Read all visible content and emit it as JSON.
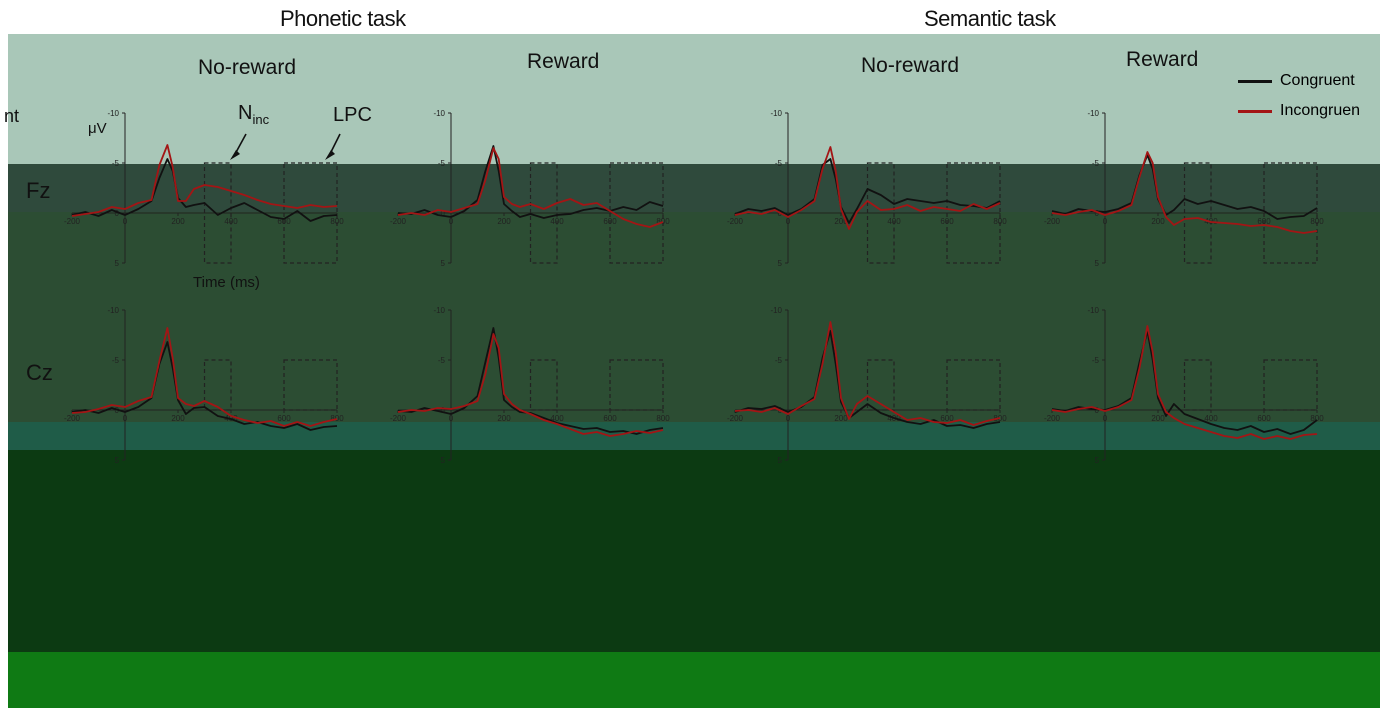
{
  "colors": {
    "band_top": "#a9c7b8",
    "band_fz": "#2f4a3c",
    "band_mid": "#2c4d33",
    "band_cz": "#24472f",
    "band_strip": "#1f5c48",
    "band_dark": "#0c3a12",
    "band_bottom": "#0f7a14",
    "congruent": "#111111",
    "incongruent": "#a31515",
    "roi_box": "#222222"
  },
  "header": {
    "tasks": [
      "Phonetic task",
      "Semantic task"
    ],
    "conditions": [
      "No-reward",
      "Reward",
      "No-reward",
      "Reward"
    ],
    "row_labels": [
      "Fz",
      "Cz"
    ],
    "cut_left_label": "nt"
  },
  "legend": [
    {
      "name": "Congruent",
      "color": "#111111"
    },
    {
      "name": "Incongruen",
      "color": "#a31515"
    }
  ],
  "annotations": {
    "y_unit": "μV",
    "n_inc_base": "N",
    "n_inc_sub": "inc",
    "lpc": "LPC",
    "x_axis_label": "Time (ms)"
  },
  "chart_data": {
    "type": "line",
    "x_unit": "ms",
    "y_unit": "μV",
    "xlim": [
      -200,
      800
    ],
    "ylim": [
      -10,
      5
    ],
    "y_inverted": true,
    "y_ticks": [
      -10,
      -5,
      0,
      5
    ],
    "y_tick_labels": [
      "-10",
      "-5",
      "0",
      "5"
    ],
    "x_ticks": [
      -200,
      0,
      200,
      400,
      600,
      800
    ],
    "x_tick_labels": [
      "-200",
      "0",
      "200",
      "400",
      "600",
      "800"
    ],
    "roi_windows": [
      {
        "name": "N_inc",
        "x_range": [
          300,
          400
        ],
        "y_range": [
          -5,
          5
        ]
      },
      {
        "name": "LPC",
        "x_range": [
          600,
          800
        ],
        "y_range": [
          -5,
          5
        ]
      }
    ],
    "panels": [
      {
        "task": "Phonetic task",
        "condition": "No-reward",
        "electrode": "Fz",
        "series": [
          {
            "name": "Congruent",
            "x": [
              -200,
              -150,
              -100,
              -50,
              0,
              50,
              100,
              130,
              160,
              180,
              200,
              230,
              260,
              300,
              350,
              400,
              450,
              500,
              550,
              600,
              650,
              700,
              750,
              800
            ],
            "y": [
              0.2,
              -0.1,
              0.3,
              -0.3,
              0.2,
              -0.4,
              -1.2,
              -3.5,
              -5.4,
              -4.2,
              -1.5,
              -0.6,
              -0.8,
              -1.0,
              0.2,
              -0.5,
              -1.0,
              -0.3,
              0.4,
              0.6,
              -0.2,
              0.8,
              0.3,
              0.2
            ]
          },
          {
            "name": "Incongruent",
            "x": [
              -200,
              -150,
              -100,
              -50,
              0,
              50,
              100,
              130,
              160,
              180,
              200,
              230,
              260,
              300,
              350,
              400,
              450,
              500,
              550,
              600,
              650,
              700,
              750,
              800
            ],
            "y": [
              0.3,
              0.1,
              -0.1,
              -0.6,
              -0.4,
              -1.0,
              -1.3,
              -4.8,
              -6.8,
              -4.6,
              -1.2,
              -1.2,
              -2.4,
              -2.8,
              -2.6,
              -2.2,
              -1.8,
              -1.3,
              -0.9,
              -0.7,
              -0.5,
              -0.8,
              -0.6,
              -0.7
            ]
          }
        ]
      },
      {
        "task": "Phonetic task",
        "condition": "Reward",
        "electrode": "Fz",
        "series": [
          {
            "name": "Congruent",
            "x": [
              -200,
              -150,
              -100,
              -50,
              0,
              50,
              100,
              130,
              160,
              180,
              200,
              230,
              260,
              300,
              350,
              400,
              450,
              500,
              550,
              600,
              650,
              700,
              750,
              800
            ],
            "y": [
              0.0,
              0.1,
              -0.3,
              0.2,
              0.4,
              -0.2,
              -1.3,
              -4.2,
              -6.7,
              -4.2,
              -0.9,
              -0.2,
              0.4,
              0.1,
              0.5,
              0.2,
              0.1,
              -0.3,
              -0.5,
              -0.2,
              -0.6,
              -0.3,
              -1.1,
              -0.7
            ]
          },
          {
            "name": "Incongruent",
            "x": [
              -200,
              -150,
              -100,
              -50,
              0,
              50,
              100,
              130,
              160,
              180,
              200,
              230,
              260,
              300,
              350,
              400,
              450,
              500,
              550,
              600,
              650,
              700,
              750,
              800
            ],
            "y": [
              0.2,
              0.0,
              0.2,
              -0.3,
              -0.1,
              -0.5,
              -0.9,
              -3.3,
              -6.5,
              -5.4,
              -1.6,
              -0.9,
              -0.6,
              -0.9,
              -0.4,
              -1.0,
              -1.4,
              -0.8,
              -1.0,
              -0.2,
              0.6,
              1.1,
              1.4,
              0.9
            ]
          }
        ]
      },
      {
        "task": "Semantic task",
        "condition": "No-reward",
        "electrode": "Fz",
        "series": [
          {
            "name": "Congruent",
            "x": [
              -200,
              -150,
              -100,
              -50,
              0,
              50,
              100,
              130,
              160,
              180,
              200,
              230,
              260,
              300,
              350,
              400,
              450,
              500,
              550,
              600,
              650,
              700,
              750,
              800
            ],
            "y": [
              0.1,
              -0.4,
              -0.2,
              -0.5,
              0.2,
              -0.4,
              -1.4,
              -4.8,
              -5.4,
              -3.4,
              -0.6,
              1.0,
              -0.4,
              -2.4,
              -1.8,
              -0.9,
              -1.4,
              -1.2,
              -1.0,
              -1.2,
              -0.8,
              -0.7,
              -0.5,
              -1.2
            ]
          },
          {
            "name": "Incongruent",
            "x": [
              -200,
              -150,
              -100,
              -50,
              0,
              50,
              100,
              130,
              160,
              180,
              200,
              230,
              260,
              300,
              350,
              400,
              450,
              500,
              550,
              600,
              650,
              700,
              750,
              800
            ],
            "y": [
              0.2,
              -0.1,
              0.1,
              -0.3,
              0.4,
              -0.3,
              -1.2,
              -4.4,
              -6.6,
              -4.2,
              -0.4,
              1.6,
              -0.1,
              -1.2,
              -0.3,
              -0.4,
              -0.8,
              -0.2,
              -0.6,
              -0.4,
              -0.2,
              -0.9,
              -0.4,
              -1.0
            ]
          }
        ]
      },
      {
        "task": "Semantic task",
        "condition": "Reward",
        "electrode": "Fz",
        "series": [
          {
            "name": "Congruent",
            "x": [
              -200,
              -150,
              -100,
              -50,
              0,
              50,
              100,
              130,
              160,
              180,
              200,
              230,
              260,
              300,
              350,
              400,
              450,
              500,
              550,
              600,
              650,
              700,
              750,
              800
            ],
            "y": [
              -0.2,
              0.1,
              -0.4,
              -0.2,
              -0.1,
              -0.4,
              -1.0,
              -3.8,
              -5.8,
              -4.4,
              -1.4,
              0.2,
              -0.3,
              -1.4,
              -0.9,
              -1.2,
              -0.8,
              -0.4,
              -0.6,
              -0.2,
              0.6,
              0.4,
              0.3,
              -0.5
            ]
          },
          {
            "name": "Incongruent",
            "x": [
              -200,
              -150,
              -100,
              -50,
              0,
              50,
              100,
              130,
              160,
              180,
              200,
              230,
              260,
              300,
              350,
              400,
              450,
              500,
              550,
              600,
              650,
              700,
              750,
              800
            ],
            "y": [
              0.0,
              0.2,
              -0.1,
              -0.3,
              0.2,
              -0.2,
              -0.8,
              -3.6,
              -6.1,
              -5.0,
              -1.6,
              0.4,
              1.2,
              0.6,
              0.5,
              0.9,
              1.0,
              1.1,
              1.3,
              1.2,
              1.4,
              1.8,
              2.0,
              1.8
            ]
          }
        ]
      },
      {
        "task": "Phonetic task",
        "condition": "No-reward",
        "electrode": "Cz",
        "series": [
          {
            "name": "Congruent",
            "x": [
              -200,
              -150,
              -100,
              -50,
              0,
              50,
              100,
              130,
              160,
              180,
              200,
              230,
              260,
              300,
              350,
              400,
              450,
              500,
              550,
              600,
              650,
              700,
              750,
              800
            ],
            "y": [
              0.2,
              0.0,
              0.3,
              -0.2,
              0.2,
              -0.3,
              -1.2,
              -4.6,
              -6.8,
              -4.2,
              -1.0,
              0.4,
              -0.2,
              -0.3,
              0.6,
              0.9,
              1.4,
              1.2,
              1.6,
              1.8,
              1.4,
              2.0,
              1.7,
              1.6
            ]
          },
          {
            "name": "Incongruent",
            "x": [
              -200,
              -150,
              -100,
              -50,
              0,
              50,
              100,
              130,
              160,
              180,
              200,
              230,
              260,
              300,
              350,
              400,
              450,
              500,
              550,
              600,
              650,
              700,
              750,
              800
            ],
            "y": [
              0.3,
              0.2,
              -0.1,
              -0.5,
              -0.3,
              -0.9,
              -1.3,
              -4.9,
              -8.2,
              -5.2,
              -1.2,
              -0.6,
              -0.4,
              -0.9,
              -0.3,
              0.6,
              1.0,
              1.3,
              1.1,
              1.6,
              1.2,
              1.6,
              1.2,
              0.9
            ]
          }
        ]
      },
      {
        "task": "Phonetic task",
        "condition": "Reward",
        "electrode": "Cz",
        "series": [
          {
            "name": "Congruent",
            "x": [
              -200,
              -150,
              -100,
              -50,
              0,
              50,
              100,
              130,
              160,
              180,
              200,
              230,
              260,
              300,
              350,
              400,
              450,
              500,
              550,
              600,
              650,
              700,
              750,
              800
            ],
            "y": [
              0.1,
              0.2,
              -0.2,
              0.1,
              0.4,
              -0.2,
              -1.4,
              -4.8,
              -8.2,
              -5.2,
              -1.0,
              -0.3,
              0.2,
              0.3,
              0.8,
              1.3,
              1.6,
              1.9,
              1.8,
              2.2,
              2.1,
              2.4,
              2.0,
              1.8
            ]
          },
          {
            "name": "Incongruent",
            "x": [
              -200,
              -150,
              -100,
              -50,
              0,
              50,
              100,
              130,
              160,
              180,
              200,
              230,
              260,
              300,
              350,
              400,
              450,
              500,
              550,
              600,
              650,
              700,
              750,
              800
            ],
            "y": [
              0.2,
              0.0,
              0.1,
              -0.2,
              -0.1,
              -0.4,
              -0.9,
              -3.6,
              -7.6,
              -6.2,
              -1.6,
              -0.6,
              0.0,
              0.4,
              1.0,
              1.4,
              1.9,
              2.4,
              2.2,
              2.6,
              2.4,
              2.1,
              2.3,
              2.0
            ]
          }
        ]
      },
      {
        "task": "Semantic task",
        "condition": "No-reward",
        "electrode": "Cz",
        "series": [
          {
            "name": "Congruent",
            "x": [
              -200,
              -150,
              -100,
              -50,
              0,
              50,
              100,
              130,
              160,
              180,
              200,
              230,
              260,
              300,
              350,
              400,
              450,
              500,
              550,
              600,
              650,
              700,
              750,
              800
            ],
            "y": [
              0.2,
              -0.2,
              -0.1,
              -0.4,
              0.2,
              -0.3,
              -1.3,
              -5.2,
              -7.9,
              -4.6,
              -0.8,
              0.8,
              0.2,
              -0.6,
              0.3,
              0.8,
              1.2,
              1.4,
              1.0,
              1.6,
              1.5,
              1.8,
              1.4,
              1.2
            ]
          },
          {
            "name": "Incongruent",
            "x": [
              -200,
              -150,
              -100,
              -50,
              0,
              50,
              100,
              130,
              160,
              180,
              200,
              230,
              260,
              300,
              350,
              400,
              450,
              500,
              550,
              600,
              650,
              700,
              750,
              800
            ],
            "y": [
              0.1,
              0.0,
              0.2,
              -0.2,
              0.4,
              -0.4,
              -1.1,
              -4.6,
              -8.8,
              -5.8,
              -1.2,
              0.9,
              -0.6,
              -1.4,
              -0.6,
              0.2,
              1.0,
              0.8,
              1.2,
              1.3,
              1.0,
              1.5,
              1.1,
              0.8
            ]
          }
        ]
      },
      {
        "task": "Semantic task",
        "condition": "Reward",
        "electrode": "Cz",
        "series": [
          {
            "name": "Congruent",
            "x": [
              -200,
              -150,
              -100,
              -50,
              0,
              50,
              100,
              130,
              160,
              180,
              200,
              230,
              260,
              300,
              350,
              400,
              450,
              500,
              550,
              600,
              650,
              700,
              750,
              800
            ],
            "y": [
              -0.1,
              0.1,
              -0.3,
              -0.1,
              0.0,
              -0.4,
              -1.2,
              -4.8,
              -7.9,
              -5.0,
              -1.2,
              0.6,
              -0.6,
              0.4,
              0.9,
              1.4,
              1.8,
              2.0,
              1.6,
              2.2,
              1.9,
              2.4,
              2.0,
              1.0
            ]
          },
          {
            "name": "Incongruent",
            "x": [
              -200,
              -150,
              -100,
              -50,
              0,
              50,
              100,
              130,
              160,
              180,
              200,
              230,
              260,
              300,
              350,
              400,
              450,
              500,
              550,
              600,
              650,
              700,
              750,
              800
            ],
            "y": [
              0.0,
              0.2,
              -0.1,
              -0.3,
              0.1,
              -0.3,
              -1.0,
              -4.2,
              -8.4,
              -5.8,
              -1.6,
              0.2,
              0.8,
              1.4,
              1.8,
              2.2,
              2.6,
              2.8,
              2.4,
              2.9,
              2.6,
              2.9,
              2.5,
              2.4
            ]
          }
        ]
      }
    ]
  }
}
